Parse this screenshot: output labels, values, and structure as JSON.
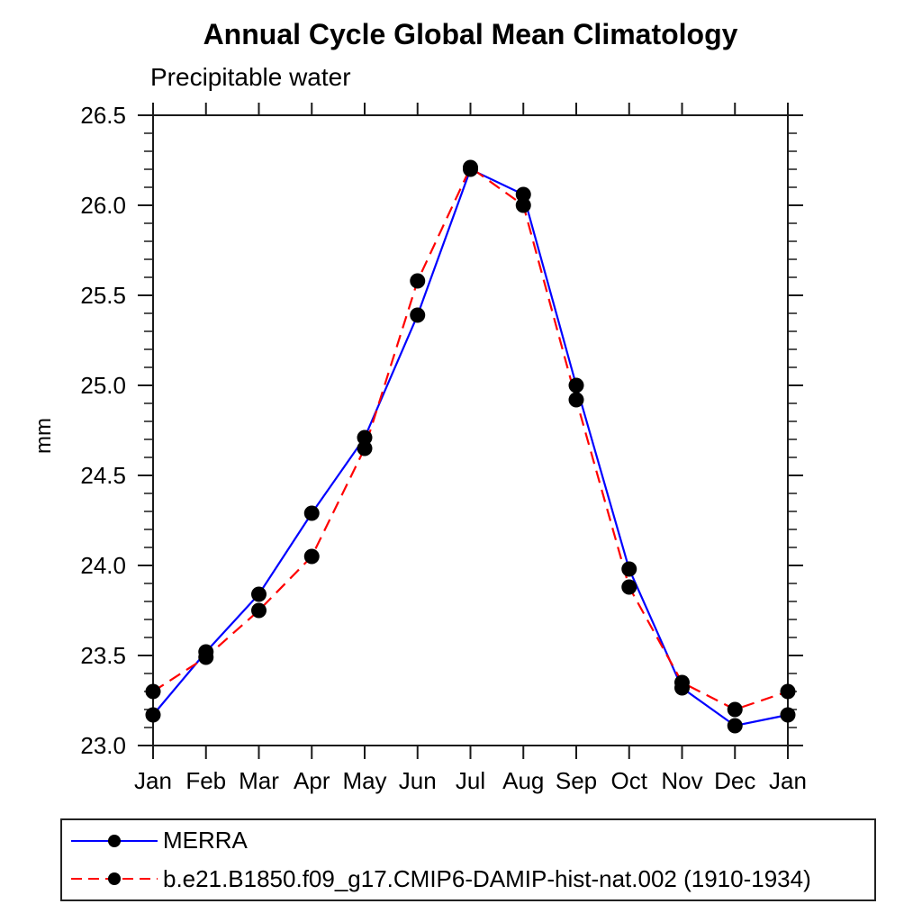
{
  "title": "Annual Cycle Global Mean Climatology",
  "subtitle": "Precipitable water",
  "y_axis_label": "mm",
  "colors": {
    "merra_line": "#0000ff",
    "model_line": "#ff0000",
    "marker": "#000000",
    "axis": "#1a1a1a"
  },
  "legend": {
    "entries": [
      {
        "label": "MERRA"
      },
      {
        "label": "b.e21.B1850.f09_g17.CMIP6-DAMIP-hist-nat.002 (1910-1934)"
      }
    ]
  },
  "chart_data": {
    "type": "line",
    "title": "Annual Cycle Global Mean Climatology",
    "subtitle": "Precipitable water",
    "ylabel": "mm",
    "categories": [
      "Jan",
      "Feb",
      "Mar",
      "Apr",
      "May",
      "Jun",
      "Jul",
      "Aug",
      "Sep",
      "Oct",
      "Nov",
      "Dec",
      "Jan"
    ],
    "series": [
      {
        "name": "MERRA",
        "color": "#0000ff",
        "line_style": "solid",
        "marker": "filled-circle",
        "marker_color": "#000000",
        "values": [
          23.17,
          23.52,
          23.84,
          24.29,
          24.71,
          25.39,
          26.2,
          26.06,
          25.0,
          23.98,
          23.32,
          23.11,
          23.17
        ]
      },
      {
        "name": "b.e21.B1850.f09_g17.CMIP6-DAMIP-hist-nat.002 (1910-1934)",
        "color": "#ff0000",
        "line_style": "dashed",
        "marker": "filled-circle",
        "marker_color": "#000000",
        "values": [
          23.3,
          23.49,
          23.75,
          24.05,
          24.65,
          25.58,
          26.21,
          26.0,
          24.92,
          23.88,
          23.35,
          23.2,
          23.3
        ]
      }
    ],
    "ylim": [
      23.0,
      26.5
    ],
    "y_major_tick_labels": [
      "23.0",
      "23.5",
      "24.0",
      "24.5",
      "25.0",
      "25.5",
      "26.0",
      "26.5"
    ],
    "y_major_step": 0.5,
    "y_minor_step": 0.1,
    "grid": false,
    "tick_direction": "out",
    "legend_position": "bottom-left-box"
  }
}
